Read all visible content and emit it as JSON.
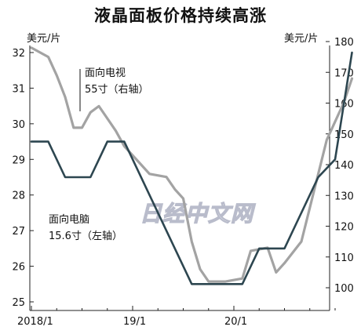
{
  "title": "液晶面板价格持续高涨",
  "units": {
    "left": "美元/片",
    "right": "美元/片"
  },
  "chart_data": {
    "type": "line",
    "title": "液晶面板价格持续高涨",
    "x_ticks": [
      "2018/1",
      "19/1",
      "20/1"
    ],
    "left_axis": {
      "label": "美元/片",
      "range": [
        24.6,
        32.5
      ],
      "ticks": [
        "25",
        "26",
        "27",
        "28",
        "29",
        "30",
        "31",
        "32"
      ]
    },
    "right_axis": {
      "label": "美元/片",
      "range": [
        93,
        185
      ],
      "ticks": [
        "100",
        "110",
        "120",
        "130",
        "140",
        "150",
        "160",
        "170",
        "180"
      ]
    },
    "grid": false,
    "series": [
      {
        "name": "面向电脑 15.6寸（左轴）",
        "axis": "left",
        "color": "#2d4650",
        "label_line1": "面向电脑",
        "label_line2": "15.6寸（左轴）",
        "points": [
          [
            "2018-01",
            29.5
          ],
          [
            "2018-03",
            29.5
          ],
          [
            "2018-05",
            28.5
          ],
          [
            "2018-08",
            28.5
          ],
          [
            "2018-10",
            29.5
          ],
          [
            "2018-12",
            29.5
          ],
          [
            "2019-03",
            28.0
          ],
          [
            "2019-06",
            26.5
          ],
          [
            "2019-08",
            25.5
          ],
          [
            "2019-12",
            25.5
          ],
          [
            "2020-02",
            25.5
          ],
          [
            "2020-04",
            26.5
          ],
          [
            "2020-07",
            26.5
          ],
          [
            "2020-09",
            27.5
          ],
          [
            "2020-11",
            28.5
          ],
          [
            "2021-01",
            29.0
          ],
          [
            "2021-03",
            32.0
          ]
        ]
      },
      {
        "name": "面向电视 55寸（右轴）",
        "axis": "right",
        "color": "#a3a3a3",
        "label_line1": "面向电视",
        "label_line2": "55寸（右轴）",
        "points": [
          [
            "2018-01",
            178
          ],
          [
            "2018-03",
            175
          ],
          [
            "2018-04",
            169
          ],
          [
            "2018-05",
            162
          ],
          [
            "2018-06",
            152
          ],
          [
            "2018-07",
            152
          ],
          [
            "2018-08",
            157
          ],
          [
            "2018-09",
            159
          ],
          [
            "2018-10",
            155
          ],
          [
            "2018-11",
            151
          ],
          [
            "2018-12",
            146
          ],
          [
            "2019-02",
            140
          ],
          [
            "2019-03",
            137
          ],
          [
            "2019-05",
            136
          ],
          [
            "2019-06",
            132
          ],
          [
            "2019-07",
            129
          ],
          [
            "2019-08",
            115
          ],
          [
            "2019-09",
            106
          ],
          [
            "2019-10",
            102
          ],
          [
            "2019-12",
            102
          ],
          [
            "2020-02",
            103
          ],
          [
            "2020-03",
            112
          ],
          [
            "2020-05",
            113
          ],
          [
            "2020-06",
            105
          ],
          [
            "2020-07",
            108
          ],
          [
            "2020-09",
            115
          ],
          [
            "2020-10",
            126
          ],
          [
            "2020-12",
            148
          ],
          [
            "2021-02",
            160
          ],
          [
            "2021-03",
            168
          ]
        ]
      }
    ]
  },
  "watermark": "日经中文网"
}
